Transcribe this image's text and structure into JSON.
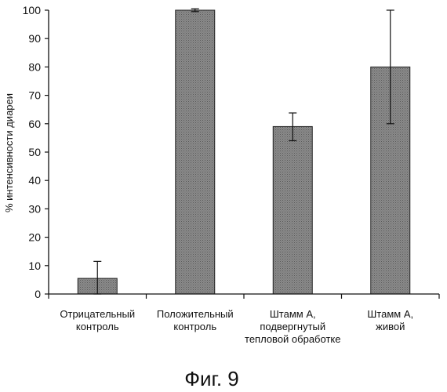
{
  "chart_data": {
    "type": "bar",
    "categories": [
      [
        "Отрицательный",
        "контроль"
      ],
      [
        "Положительный",
        "контроль"
      ],
      [
        "Штамм А,",
        "подвергнутый",
        "тепловой обработке"
      ],
      [
        "Штамм А,",
        "живой"
      ]
    ],
    "values": [
      5.5,
      100,
      59,
      80
    ],
    "error_upper": [
      11.5,
      100.5,
      63.8,
      100
    ],
    "error_lower": [
      0,
      99.5,
      54,
      60
    ],
    "ylabel": "% интенсивности диареи",
    "ylim": [
      0,
      100
    ],
    "yticks": [
      0,
      10,
      20,
      30,
      40,
      50,
      60,
      70,
      80,
      90,
      100
    ],
    "bar_color": "#7a7a7a",
    "grid": false
  },
  "caption": "Фиг. 9"
}
